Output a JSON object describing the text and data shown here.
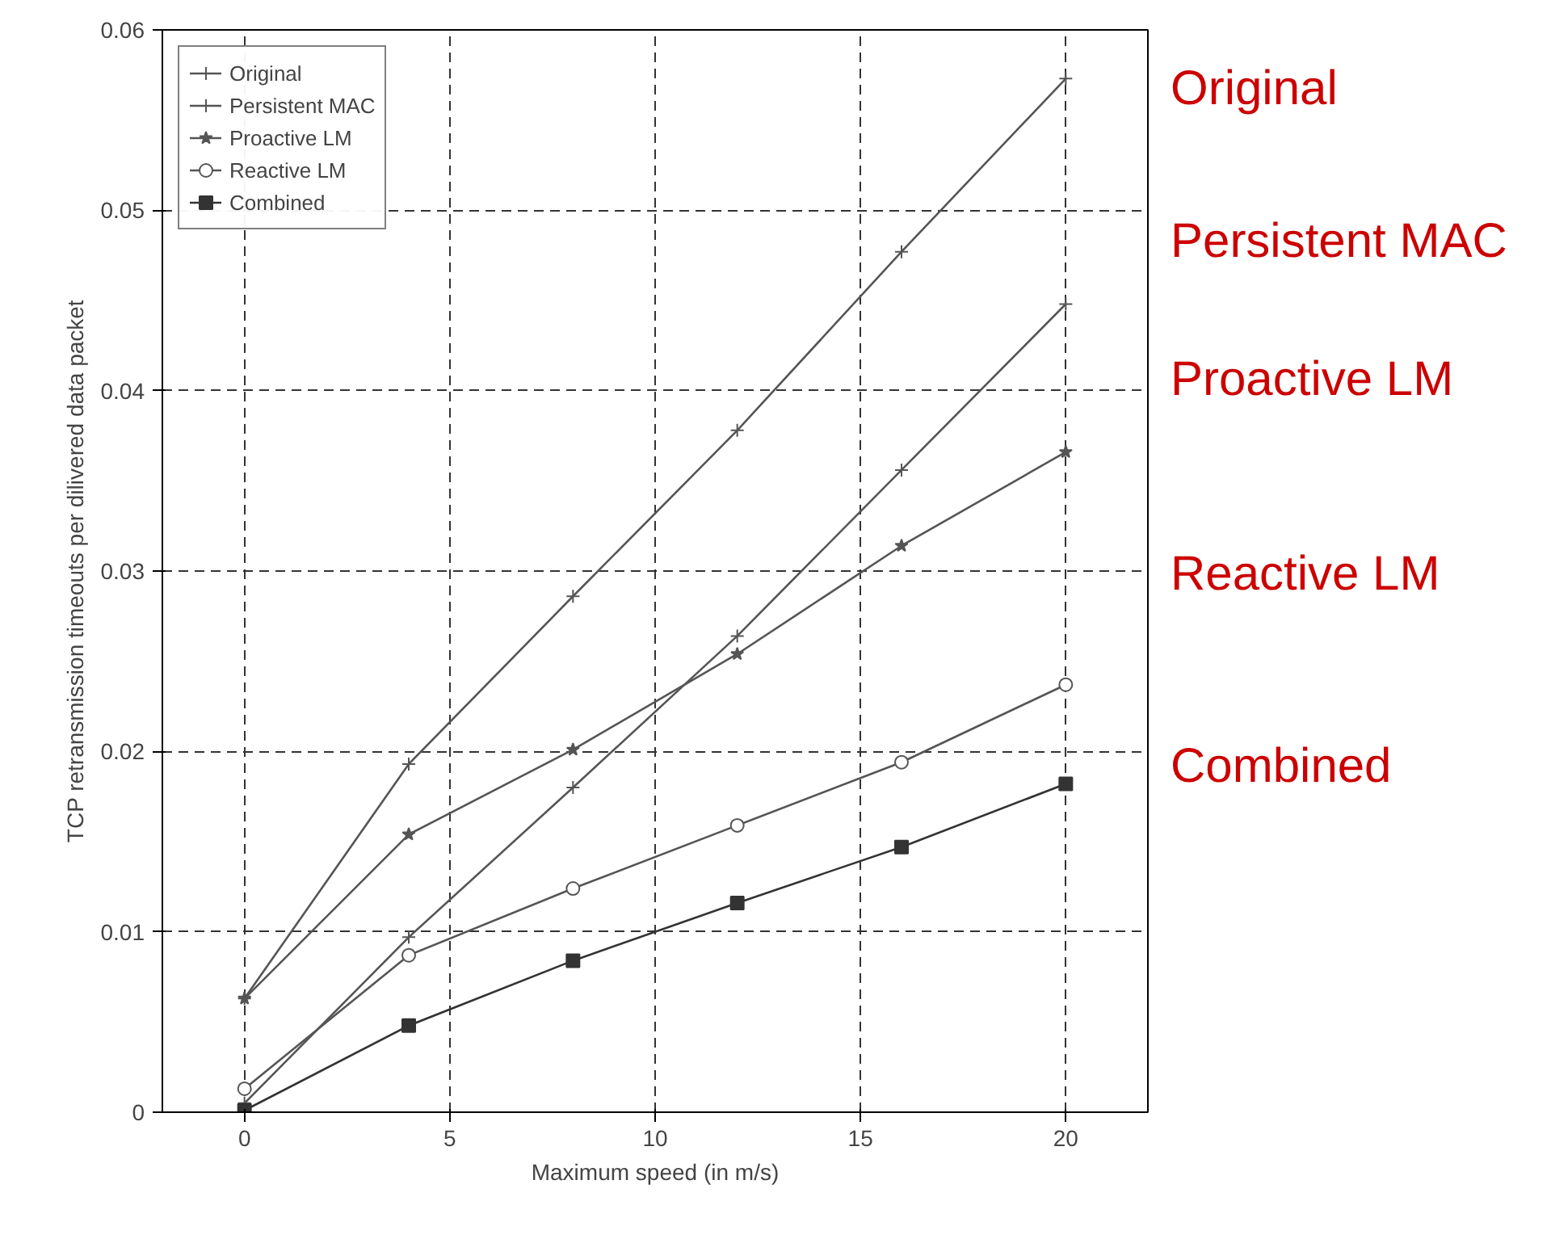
{
  "chart_data": {
    "type": "line",
    "xlabel": "Maximum speed (in m/s)",
    "ylabel": "TCP retransmission timeouts per dilivered data packet",
    "x": [
      0,
      4,
      8,
      12,
      16,
      20
    ],
    "series": [
      {
        "name": "Original",
        "color": "#555555",
        "marker": "cross",
        "values": [
          0.0063,
          0.0193,
          0.0286,
          0.0378,
          0.0477,
          0.0573
        ]
      },
      {
        "name": "Persistent MAC",
        "color": "#555555",
        "marker": "cross",
        "values": [
          0.0005,
          0.0097,
          0.018,
          0.0264,
          0.0356,
          0.0448
        ]
      },
      {
        "name": "Proactive LM",
        "color": "#555555",
        "marker": "star",
        "values": [
          0.0063,
          0.0154,
          0.0201,
          0.0254,
          0.0314,
          0.0366
        ]
      },
      {
        "name": "Reactive LM",
        "color": "#555555",
        "marker": "circle",
        "values": [
          0.0013,
          0.0087,
          0.0124,
          0.0159,
          0.0194,
          0.0237
        ]
      },
      {
        "name": "Combined",
        "color": "#333333",
        "marker": "square",
        "values": [
          0.0001,
          0.0048,
          0.0084,
          0.0116,
          0.0147,
          0.0182
        ]
      }
    ],
    "xlim": [
      -2,
      22
    ],
    "ylim": [
      0,
      0.06
    ],
    "xticks": [
      0,
      5,
      10,
      15,
      20
    ],
    "yticks": [
      0,
      0.01,
      0.02,
      0.03,
      0.04,
      0.05,
      0.06
    ],
    "grid": true,
    "legend": "top left",
    "line_style": "solid",
    "annotations": [
      "Original",
      "Persistent MAC",
      "Proactive LM",
      "Reactive LM",
      "Combined"
    ]
  }
}
